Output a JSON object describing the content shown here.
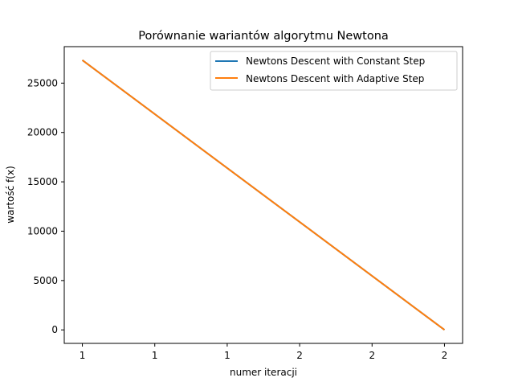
{
  "chart_data": {
    "type": "line",
    "title": "Porównanie wariantów algorytmu Newtona",
    "xlabel": "numer iteracji",
    "ylabel": "wartość f(x)",
    "x": [
      1,
      2
    ],
    "xlim": [
      0.95,
      2.05
    ],
    "x_ticks": [
      1,
      1.2,
      1.4,
      1.6,
      1.8,
      2
    ],
    "x_tick_labels": [
      "1",
      "1",
      "1",
      "2",
      "2",
      "2"
    ],
    "ylim": [
      -1367,
      28695
    ],
    "y_ticks": [
      0,
      5000,
      10000,
      15000,
      20000,
      25000
    ],
    "y_tick_labels": [
      "0",
      "5000",
      "10000",
      "15000",
      "20000",
      "25000"
    ],
    "grid": false,
    "legend_position": "top-right",
    "series": [
      {
        "name": "Newtons Descent with Constant Step",
        "color": "#1f77b4",
        "values": [
          27328,
          0
        ]
      },
      {
        "name": "Newtons Descent with Adaptive Step",
        "color": "#ff7f0e",
        "values": [
          27328,
          0
        ]
      }
    ]
  }
}
